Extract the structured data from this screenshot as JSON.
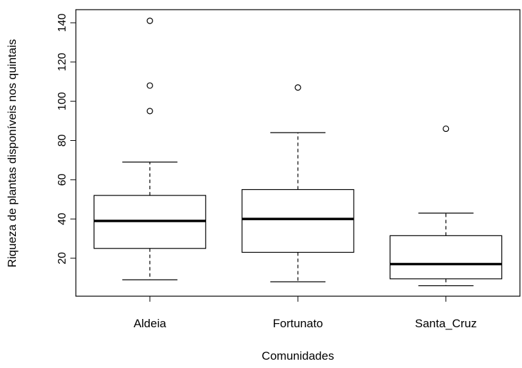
{
  "chart_data": {
    "type": "boxplot",
    "xlabel": "Comunidades",
    "ylabel": "Riqueza de plantas disponíveis nos quintais",
    "categories": [
      "Aldeia",
      "Fortunato",
      "Santa_Cruz"
    ],
    "boxes": [
      {
        "name": "Aldeia",
        "whisker_low": 9,
        "q1": 25,
        "median": 39,
        "q3": 52,
        "whisker_high": 69,
        "outliers": [
          95,
          108,
          141
        ]
      },
      {
        "name": "Fortunato",
        "whisker_low": 8,
        "q1": 23,
        "median": 40,
        "q3": 55,
        "whisker_high": 84,
        "outliers": [
          107
        ]
      },
      {
        "name": "Santa_Cruz",
        "whisker_low": 6,
        "q1": 9.5,
        "median": 17,
        "q3": 31.5,
        "whisker_high": 43,
        "outliers": [
          86
        ]
      }
    ],
    "yticks": [
      20,
      40,
      60,
      80,
      100,
      120,
      140
    ],
    "ylim": [
      1,
      146
    ],
    "grid": false
  }
}
